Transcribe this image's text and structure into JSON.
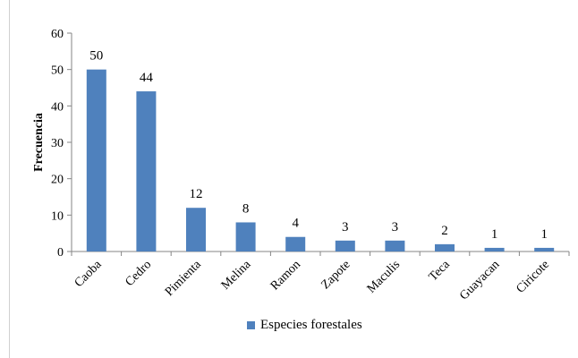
{
  "chart_data": {
    "type": "bar",
    "categories": [
      "Caoba",
      "Cedro",
      "Pimienta",
      "Melina",
      "Ramon",
      "Zapote",
      "Maculis",
      "Teca",
      "Guayacan",
      "Ciricote"
    ],
    "series": [
      {
        "name": "Especies forestales",
        "values": [
          50,
          44,
          12,
          8,
          4,
          3,
          3,
          2,
          1,
          1
        ]
      }
    ],
    "ylabel": "Frecuencia",
    "xlabel": "",
    "ylim": [
      0,
      60
    ],
    "yticks": [
      0,
      10,
      20,
      30,
      40,
      50,
      60
    ],
    "grid": false,
    "legend_position": "bottom",
    "bar_color": "#4F81BD"
  }
}
